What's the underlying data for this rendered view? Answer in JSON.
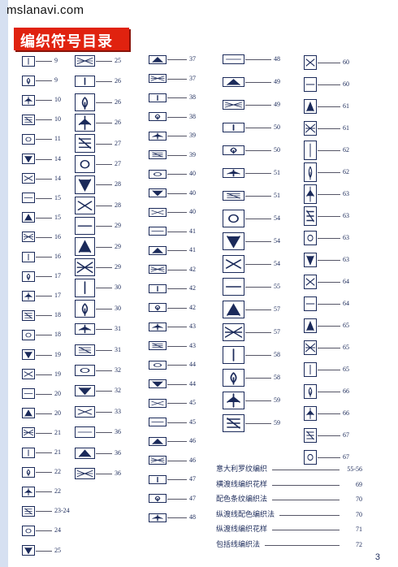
{
  "site": "mslanavi.com",
  "title": "编织符号目录",
  "page_number": "3",
  "columns": [
    [
      "9",
      "9",
      "10",
      "10",
      "11",
      "14",
      "14",
      "15",
      "15",
      "16",
      "16",
      "17",
      "17",
      "18",
      "18",
      "19",
      "19",
      "20",
      "20",
      "21",
      "21",
      "22",
      "22",
      "23-24",
      "24",
      "25"
    ],
    [
      "25",
      "26",
      "26",
      "26",
      "27",
      "27",
      "28",
      "28",
      "29",
      "29",
      "29",
      "30",
      "30",
      "31",
      "31",
      "32",
      "32",
      "33",
      "36",
      "36",
      "36"
    ],
    [
      "37",
      "37",
      "38",
      "38",
      "39",
      "39",
      "40",
      "40",
      "40",
      "41",
      "41",
      "42",
      "42",
      "42",
      "43",
      "43",
      "44",
      "44",
      "45",
      "45",
      "46",
      "46",
      "47",
      "47",
      "48"
    ],
    [
      "48",
      "49",
      "49",
      "50",
      "50",
      "51",
      "51",
      "54",
      "54",
      "54",
      "55",
      "57",
      "57",
      "58",
      "58",
      "59",
      "59"
    ],
    [
      "60",
      "60",
      "61",
      "61",
      "62",
      "62",
      "63",
      "63",
      "63",
      "63",
      "64",
      "64",
      "65",
      "65",
      "65",
      "66",
      "66",
      "67",
      "67"
    ]
  ],
  "notes": [
    {
      "text": "意大利罗纹编织",
      "page": "55-56"
    },
    {
      "text": "横渡线编织花样",
      "page": "69"
    },
    {
      "text": "配色条纹编织法",
      "page": "70"
    },
    {
      "text": "纵渡线配色编织法",
      "page": "70"
    },
    {
      "text": "纵渡线编织花样",
      "page": "71"
    },
    {
      "text": "包括线编织法",
      "page": "72"
    }
  ]
}
